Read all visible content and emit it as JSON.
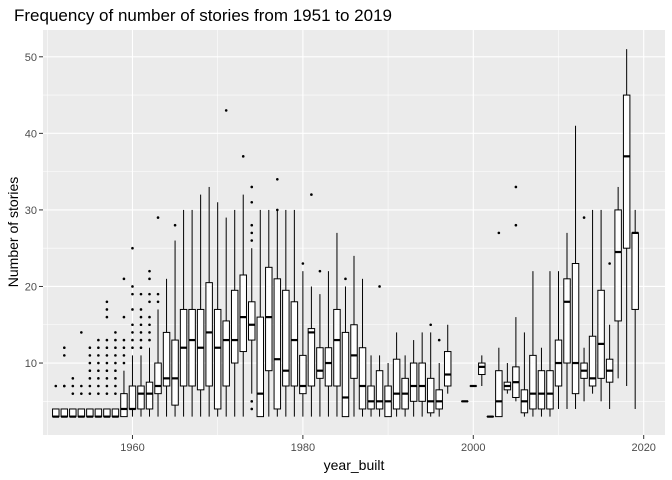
{
  "chart_data": {
    "type": "boxplot",
    "title": "Frequency of number of stories from 1951 to 2019",
    "xlabel": "year_built",
    "ylabel": "Number of stories",
    "xlim": [
      1949.5,
      2022.5
    ],
    "ylim": [
      0.6,
      53.5
    ],
    "x_ticks": [
      1960,
      1980,
      2000,
      2020
    ],
    "y_ticks": [
      10,
      20,
      30,
      40,
      50
    ],
    "grid": true,
    "colors": {
      "panel": "#ebebeb",
      "grid": "#ffffff",
      "box_fill": "#ffffff",
      "box_stroke": "#000000",
      "tick_label": "#4d4d4d"
    },
    "boxes": [
      {
        "x": 1951,
        "min": 3,
        "q1": 3,
        "median": 3,
        "q3": 4,
        "max": 4,
        "outliers": [
          7
        ]
      },
      {
        "x": 1952,
        "min": 3,
        "q1": 3,
        "median": 3,
        "q3": 4,
        "max": 4,
        "outliers": [
          7,
          12,
          11,
          7
        ]
      },
      {
        "x": 1953,
        "min": 3,
        "q1": 3,
        "median": 3,
        "q3": 4,
        "max": 4,
        "outliers": [
          6,
          7,
          8
        ]
      },
      {
        "x": 1954,
        "min": 3,
        "q1": 3,
        "median": 3,
        "q3": 4,
        "max": 4,
        "outliers": [
          6,
          7,
          14
        ]
      },
      {
        "x": 1955,
        "min": 3,
        "q1": 3,
        "median": 3,
        "q3": 4,
        "max": 4,
        "outliers": [
          6,
          7,
          8,
          9,
          10,
          11,
          12
        ]
      },
      {
        "x": 1956,
        "min": 3,
        "q1": 3,
        "median": 3,
        "q3": 4,
        "max": 4,
        "outliers": [
          6,
          7,
          8,
          9,
          10,
          11,
          12,
          13
        ]
      },
      {
        "x": 1957,
        "min": 3,
        "q1": 3,
        "median": 3,
        "q3": 4,
        "max": 4,
        "outliers": [
          6,
          7,
          8,
          9,
          10,
          11,
          12,
          13,
          16,
          17,
          18
        ]
      },
      {
        "x": 1958,
        "min": 3,
        "q1": 3,
        "median": 3,
        "q3": 4,
        "max": 4,
        "outliers": [
          6,
          7,
          8,
          9,
          10,
          11,
          12,
          13,
          14
        ]
      },
      {
        "x": 1959,
        "min": 3,
        "q1": 3,
        "median": 4,
        "q3": 6,
        "max": 9,
        "outliers": [
          10,
          11,
          12,
          13,
          16,
          21
        ]
      },
      {
        "x": 1960,
        "min": 3,
        "q1": 4,
        "median": 4,
        "q3": 7,
        "max": 11,
        "outliers": [
          12,
          13,
          14,
          15,
          17,
          19,
          20,
          25
        ]
      },
      {
        "x": 1961,
        "min": 3,
        "q1": 4,
        "median": 6,
        "q3": 7,
        "max": 11,
        "outliers": [
          12,
          13,
          14,
          15,
          16,
          17,
          19
        ]
      },
      {
        "x": 1962,
        "min": 3,
        "q1": 4,
        "median": 6,
        "q3": 7.5,
        "max": 12,
        "outliers": [
          13,
          14,
          15,
          16,
          18,
          19,
          21,
          22
        ]
      },
      {
        "x": 1963,
        "min": 3,
        "q1": 6,
        "median": 7,
        "q3": 10,
        "max": 17,
        "outliers": [
          18,
          19,
          29
        ]
      },
      {
        "x": 1964,
        "min": 3,
        "q1": 7,
        "median": 8,
        "q3": 14,
        "max": 21,
        "outliers": []
      },
      {
        "x": 1965,
        "min": 3,
        "q1": 4.5,
        "median": 8,
        "q3": 13,
        "max": 26,
        "outliers": [
          28
        ]
      },
      {
        "x": 1966,
        "min": 3,
        "q1": 7,
        "median": 12,
        "q3": 17,
        "max": 30,
        "outliers": []
      },
      {
        "x": 1967,
        "min": 3,
        "q1": 7,
        "median": 13,
        "q3": 17,
        "max": 30,
        "outliers": []
      },
      {
        "x": 1968,
        "min": 3,
        "q1": 6.5,
        "median": 12,
        "q3": 17,
        "max": 32,
        "outliers": []
      },
      {
        "x": 1969,
        "min": 3,
        "q1": 7,
        "median": 14,
        "q3": 20.5,
        "max": 33,
        "outliers": []
      },
      {
        "x": 1970,
        "min": 3,
        "q1": 4,
        "median": 12,
        "q3": 17,
        "max": 31,
        "outliers": []
      },
      {
        "x": 1971,
        "min": 3,
        "q1": 7,
        "median": 13,
        "q3": 15.5,
        "max": 29,
        "outliers": [
          43
        ]
      },
      {
        "x": 1972,
        "min": 3,
        "q1": 10,
        "median": 13,
        "q3": 19.5,
        "max": 30,
        "outliers": []
      },
      {
        "x": 1973,
        "min": 3,
        "q1": 11.5,
        "median": 16,
        "q3": 21.5,
        "max": 32,
        "outliers": [
          37
        ]
      },
      {
        "x": 1974,
        "min": 6,
        "q1": 13,
        "median": 15,
        "q3": 18,
        "max": 25,
        "outliers": [
          4,
          5,
          26,
          27,
          28,
          31,
          33
        ]
      },
      {
        "x": 1975,
        "min": 3,
        "q1": 3,
        "median": 6,
        "q3": 16,
        "max": 30,
        "outliers": []
      },
      {
        "x": 1976,
        "min": 3,
        "q1": 9,
        "median": 16,
        "q3": 22.5,
        "max": 30,
        "outliers": []
      },
      {
        "x": 1977,
        "min": 3,
        "q1": 4,
        "median": 10.5,
        "q3": 21,
        "max": 30,
        "outliers": [
          30,
          34
        ]
      },
      {
        "x": 1978,
        "min": 3,
        "q1": 7,
        "median": 9,
        "q3": 19.5,
        "max": 30,
        "outliers": []
      },
      {
        "x": 1979,
        "min": 3,
        "q1": 7,
        "median": 13,
        "q3": 18,
        "max": 30,
        "outliers": []
      },
      {
        "x": 1980,
        "min": 3,
        "q1": 6,
        "median": 7,
        "q3": 11,
        "max": 22,
        "outliers": [
          23
        ]
      },
      {
        "x": 1981,
        "min": 3,
        "q1": 7,
        "median": 14,
        "q3": 14.5,
        "max": 20,
        "outliers": [
          32
        ]
      },
      {
        "x": 1982,
        "min": 3,
        "q1": 8,
        "median": 9,
        "q3": 12,
        "max": 19,
        "outliers": [
          22
        ]
      },
      {
        "x": 1983,
        "min": 3,
        "q1": 7,
        "median": 10,
        "q3": 12,
        "max": 22,
        "outliers": []
      },
      {
        "x": 1984,
        "min": 3,
        "q1": 7,
        "median": 13,
        "q3": 17,
        "max": 27,
        "outliers": []
      },
      {
        "x": 1985,
        "min": 3,
        "q1": 3,
        "median": 5.5,
        "q3": 14,
        "max": 20,
        "outliers": [
          21
        ]
      },
      {
        "x": 1986,
        "min": 3,
        "q1": 8,
        "median": 11,
        "q3": 15,
        "max": 24,
        "outliers": []
      },
      {
        "x": 1987,
        "min": 3,
        "q1": 4,
        "median": 7,
        "q3": 12,
        "max": 21,
        "outliers": []
      },
      {
        "x": 1988,
        "min": 3,
        "q1": 4,
        "median": 5,
        "q3": 7,
        "max": 11,
        "outliers": []
      },
      {
        "x": 1989,
        "min": 3,
        "q1": 4,
        "median": 5,
        "q3": 9,
        "max": 11,
        "outliers": [
          20
        ]
      },
      {
        "x": 1990,
        "min": 3,
        "q1": 3,
        "median": 5,
        "q3": 7,
        "max": 10,
        "outliers": []
      },
      {
        "x": 1991,
        "min": 3,
        "q1": 4,
        "median": 6,
        "q3": 10.5,
        "max": 14,
        "outliers": []
      },
      {
        "x": 1992,
        "min": 3,
        "q1": 4,
        "median": 6,
        "q3": 8,
        "max": 11,
        "outliers": []
      },
      {
        "x": 1993,
        "min": 3,
        "q1": 5,
        "median": 7,
        "q3": 10,
        "max": 13,
        "outliers": []
      },
      {
        "x": 1994,
        "min": 3,
        "q1": 5,
        "median": 7,
        "q3": 10,
        "max": 14,
        "outliers": []
      },
      {
        "x": 1995,
        "min": 3,
        "q1": 3.5,
        "median": 5,
        "q3": 8,
        "max": 14,
        "outliers": [
          15
        ]
      },
      {
        "x": 1996,
        "min": 3,
        "q1": 4,
        "median": 5,
        "q3": 6.5,
        "max": 10,
        "outliers": [
          13
        ]
      },
      {
        "x": 1997,
        "min": 6,
        "q1": 7,
        "median": 8.5,
        "q3": 11.5,
        "max": 15,
        "outliers": []
      },
      {
        "x": 1999,
        "min": 5,
        "q1": 5,
        "median": 5,
        "q3": 5,
        "max": 5,
        "outliers": []
      },
      {
        "x": 2000,
        "min": 7,
        "q1": 7,
        "median": 7,
        "q3": 7,
        "max": 7,
        "outliers": []
      },
      {
        "x": 2001,
        "min": 7,
        "q1": 8.5,
        "median": 9.5,
        "q3": 10,
        "max": 11,
        "outliers": []
      },
      {
        "x": 2002,
        "min": 3,
        "q1": 3,
        "median": 3,
        "q3": 3,
        "max": 3,
        "outliers": []
      },
      {
        "x": 2003,
        "min": 3,
        "q1": 3,
        "median": 5,
        "q3": 9,
        "max": 12,
        "outliers": [
          27
        ]
      },
      {
        "x": 2004,
        "min": 6,
        "q1": 6.5,
        "median": 7,
        "q3": 7.5,
        "max": 10,
        "outliers": []
      },
      {
        "x": 2005,
        "min": 5,
        "q1": 5.5,
        "median": 7.5,
        "q3": 9.5,
        "max": 16,
        "outliers": [
          28,
          33
        ]
      },
      {
        "x": 2006,
        "min": 3,
        "q1": 3.5,
        "median": 5,
        "q3": 6.5,
        "max": 14,
        "outliers": []
      },
      {
        "x": 2007,
        "min": 3,
        "q1": 4,
        "median": 6,
        "q3": 11,
        "max": 22,
        "outliers": []
      },
      {
        "x": 2008,
        "min": 3,
        "q1": 4,
        "median": 6,
        "q3": 9,
        "max": 12,
        "outliers": []
      },
      {
        "x": 2009,
        "min": 3,
        "q1": 4,
        "median": 6,
        "q3": 9,
        "max": 22,
        "outliers": []
      },
      {
        "x": 2010,
        "min": 4,
        "q1": 7,
        "median": 10,
        "q3": 13,
        "max": 22,
        "outliers": []
      },
      {
        "x": 2011,
        "min": 4,
        "q1": 10,
        "median": 18,
        "q3": 21,
        "max": 27,
        "outliers": []
      },
      {
        "x": 2012,
        "min": 4,
        "q1": 6,
        "median": 10,
        "q3": 23,
        "max": 41,
        "outliers": []
      },
      {
        "x": 2013,
        "min": 5,
        "q1": 8,
        "median": 9,
        "q3": 10,
        "max": 12,
        "outliers": [
          29
        ]
      },
      {
        "x": 2014,
        "min": 6,
        "q1": 7,
        "median": 8,
        "q3": 13.5,
        "max": 30,
        "outliers": []
      },
      {
        "x": 2015,
        "min": 5,
        "q1": 8,
        "median": 12.5,
        "q3": 19.5,
        "max": 30,
        "outliers": []
      },
      {
        "x": 2016,
        "min": 4,
        "q1": 7.5,
        "median": 9,
        "q3": 10.5,
        "max": 15,
        "outliers": [
          23
        ]
      },
      {
        "x": 2017,
        "min": 8,
        "q1": 15.5,
        "median": 24.5,
        "q3": 30,
        "max": 33,
        "outliers": []
      },
      {
        "x": 2018,
        "min": 7,
        "q1": 25,
        "median": 37,
        "q3": 45,
        "max": 51,
        "outliers": []
      },
      {
        "x": 2019,
        "min": 4,
        "q1": 17,
        "median": 27,
        "q3": 27,
        "max": 30,
        "outliers": []
      }
    ]
  }
}
